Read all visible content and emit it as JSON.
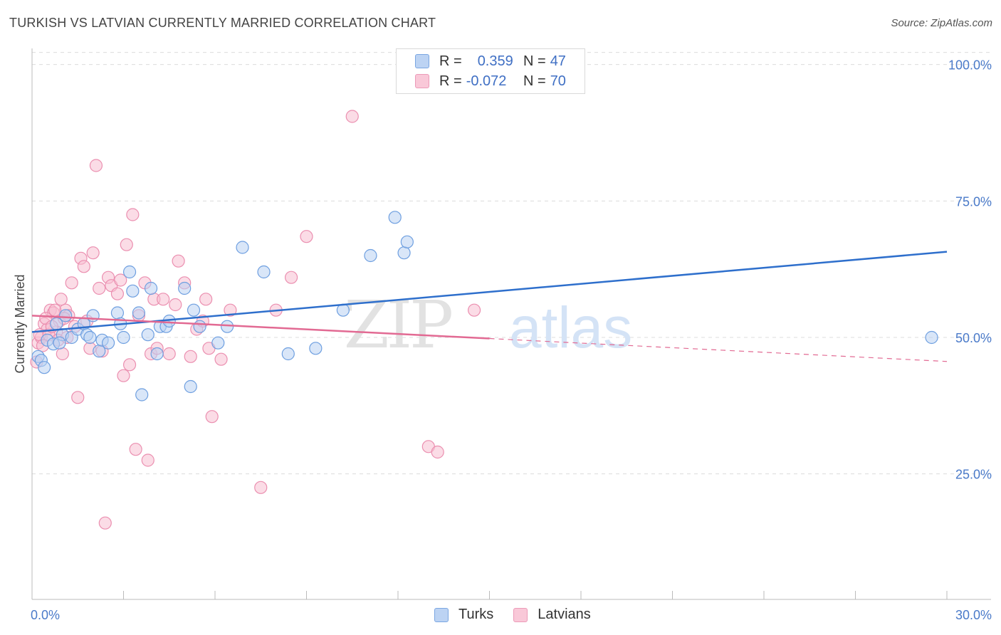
{
  "header": {
    "title": "TURKISH VS LATVIAN CURRENTLY MARRIED CORRELATION CHART",
    "source": "Source: ZipAtlas.com"
  },
  "watermark": {
    "zip": "ZIP",
    "atlas": "atlas"
  },
  "legend": {
    "rows": [
      {
        "r_label": "R =",
        "r_value": "0.359",
        "n_label": "N =",
        "n_value": "47"
      },
      {
        "r_label": "R =",
        "r_value": "-0.072",
        "n_label": "N =",
        "n_value": "70"
      }
    ]
  },
  "bottom_legend": {
    "turks": "Turks",
    "latvians": "Latvians"
  },
  "colors": {
    "turks_fill": "#b9d2f3",
    "turks_stroke": "#6e9fe0",
    "turks_line": "#2e6fcc",
    "latvians_fill": "#f7bfd2",
    "latvians_stroke": "#eb8fb0",
    "latvians_line": "#e26a93",
    "tick_text": "#4a7ac9",
    "grid": "#dcdcdc"
  },
  "chart_data": {
    "type": "scatter",
    "title": "TURKISH VS LATVIAN CURRENTLY MARRIED CORRELATION CHART",
    "xlabel": "",
    "ylabel": "Currently Married",
    "xlim": [
      0,
      30
    ],
    "ylim": [
      2,
      104
    ],
    "x_tick_labels": [
      "0.0%",
      "30.0%"
    ],
    "y_ticks": [
      25,
      50,
      75,
      100
    ],
    "y_tick_labels": [
      "25.0%",
      "50.0%",
      "75.0%",
      "100.0%"
    ],
    "grid": true,
    "series": [
      {
        "name": "Turks",
        "trend": {
          "x": [
            0,
            30
          ],
          "y": [
            51.0,
            65.7
          ]
        },
        "points": [
          [
            0.2,
            46.5
          ],
          [
            0.3,
            45.8
          ],
          [
            0.5,
            49.5
          ],
          [
            0.7,
            48.8
          ],
          [
            0.8,
            52.5
          ],
          [
            1.0,
            50.5
          ],
          [
            1.1,
            54.0
          ],
          [
            1.3,
            50.0
          ],
          [
            1.5,
            51.5
          ],
          [
            1.7,
            52.5
          ],
          [
            1.8,
            50.5
          ],
          [
            2.0,
            54.0
          ],
          [
            2.2,
            47.5
          ],
          [
            2.3,
            49.5
          ],
          [
            2.5,
            49.0
          ],
          [
            2.8,
            54.5
          ],
          [
            2.9,
            52.5
          ],
          [
            3.0,
            50.0
          ],
          [
            3.2,
            62.0
          ],
          [
            3.3,
            58.5
          ],
          [
            3.5,
            54.5
          ],
          [
            3.6,
            39.5
          ],
          [
            3.8,
            50.5
          ],
          [
            3.9,
            59.0
          ],
          [
            4.1,
            47.0
          ],
          [
            4.2,
            52.0
          ],
          [
            4.4,
            52.0
          ],
          [
            4.5,
            53.0
          ],
          [
            5.0,
            59.0
          ],
          [
            5.2,
            41.0
          ],
          [
            5.3,
            55.0
          ],
          [
            5.5,
            52.0
          ],
          [
            6.1,
            49.0
          ],
          [
            6.4,
            52.0
          ],
          [
            6.9,
            66.5
          ],
          [
            7.6,
            62.0
          ],
          [
            8.4,
            47.0
          ],
          [
            9.3,
            48.0
          ],
          [
            10.2,
            55.0
          ],
          [
            11.1,
            65.0
          ],
          [
            11.9,
            72.0
          ],
          [
            12.2,
            65.5
          ],
          [
            12.3,
            67.5
          ],
          [
            29.5,
            50.0
          ],
          [
            0.4,
            44.5
          ],
          [
            0.9,
            49.0
          ],
          [
            1.9,
            50.0
          ]
        ]
      },
      {
        "name": "Latvians",
        "trend_solid": {
          "x": [
            0,
            15.0
          ],
          "y": [
            54.0,
            49.8
          ]
        },
        "trend_dashed": {
          "x": [
            15.0,
            30
          ],
          "y": [
            49.8,
            45.6
          ]
        },
        "points": [
          [
            0.2,
            49.0
          ],
          [
            0.3,
            50.0
          ],
          [
            0.4,
            52.5
          ],
          [
            0.5,
            51.5
          ],
          [
            0.6,
            55.0
          ],
          [
            0.7,
            54.5
          ],
          [
            0.8,
            51.0
          ],
          [
            0.9,
            53.0
          ],
          [
            1.0,
            47.0
          ],
          [
            1.1,
            55.0
          ],
          [
            1.2,
            54.0
          ],
          [
            1.3,
            60.0
          ],
          [
            1.4,
            52.0
          ],
          [
            1.5,
            39.0
          ],
          [
            1.6,
            64.5
          ],
          [
            1.7,
            63.0
          ],
          [
            1.8,
            53.0
          ],
          [
            1.9,
            48.0
          ],
          [
            2.0,
            65.5
          ],
          [
            2.1,
            81.5
          ],
          [
            2.2,
            59.0
          ],
          [
            2.3,
            47.5
          ],
          [
            2.4,
            16.0
          ],
          [
            2.5,
            61.0
          ],
          [
            2.6,
            59.5
          ],
          [
            2.8,
            58.0
          ],
          [
            2.9,
            60.5
          ],
          [
            3.0,
            43.0
          ],
          [
            3.1,
            67.0
          ],
          [
            3.2,
            45.0
          ],
          [
            3.3,
            72.5
          ],
          [
            3.4,
            29.5
          ],
          [
            3.5,
            54.0
          ],
          [
            3.7,
            60.0
          ],
          [
            3.8,
            27.5
          ],
          [
            3.9,
            47.0
          ],
          [
            4.0,
            57.0
          ],
          [
            4.1,
            48.0
          ],
          [
            4.3,
            57.0
          ],
          [
            4.5,
            47.0
          ],
          [
            4.7,
            56.0
          ],
          [
            4.8,
            64.0
          ],
          [
            5.0,
            60.0
          ],
          [
            5.2,
            46.5
          ],
          [
            5.4,
            51.5
          ],
          [
            5.6,
            53.0
          ],
          [
            5.7,
            57.0
          ],
          [
            5.8,
            48.0
          ],
          [
            5.9,
            35.5
          ],
          [
            6.2,
            46.0
          ],
          [
            6.5,
            55.0
          ],
          [
            7.5,
            22.5
          ],
          [
            8.0,
            55.0
          ],
          [
            8.5,
            61.0
          ],
          [
            9.0,
            68.5
          ],
          [
            10.5,
            90.5
          ],
          [
            13.0,
            30.0
          ],
          [
            13.3,
            29.0
          ],
          [
            14.5,
            55.0
          ],
          [
            0.15,
            45.5
          ],
          [
            0.25,
            50.5
          ],
          [
            0.35,
            48.5
          ],
          [
            0.45,
            53.5
          ],
          [
            0.55,
            50.5
          ],
          [
            0.65,
            52.0
          ],
          [
            0.75,
            55.0
          ],
          [
            0.85,
            49.5
          ],
          [
            0.95,
            57.0
          ],
          [
            1.05,
            53.5
          ],
          [
            1.15,
            50.0
          ]
        ]
      }
    ]
  }
}
